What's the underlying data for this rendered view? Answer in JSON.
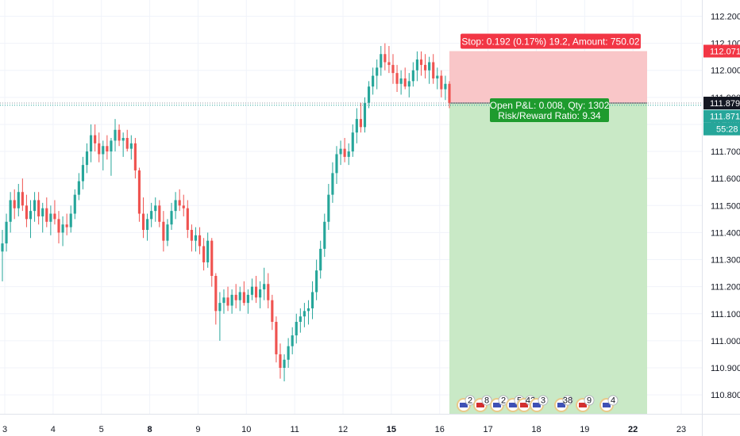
{
  "chart_data": {
    "type": "candlestick",
    "x_ticks": [
      "3",
      "4",
      "5",
      "8",
      "9",
      "10",
      "11",
      "12",
      "15",
      "16",
      "17",
      "18",
      "19",
      "22",
      "23"
    ],
    "x_ticks_bold": [
      "8",
      "15",
      "22"
    ],
    "y_ticks": [
      "110.800",
      "110.900",
      "111.000",
      "111.100",
      "111.200",
      "111.300",
      "111.400",
      "111.500",
      "111.600",
      "111.700",
      "111.800",
      "111.900",
      "112.000",
      "112.100",
      "112.200"
    ],
    "ylim": [
      110.73,
      112.26
    ],
    "grid": true,
    "candles": [
      {
        "o": 111.33,
        "h": 111.41,
        "l": 111.22,
        "c": 111.36
      },
      {
        "o": 111.36,
        "h": 111.47,
        "l": 111.33,
        "c": 111.44
      },
      {
        "o": 111.44,
        "h": 111.55,
        "l": 111.4,
        "c": 111.52
      },
      {
        "o": 111.52,
        "h": 111.56,
        "l": 111.45,
        "c": 111.49
      },
      {
        "o": 111.49,
        "h": 111.58,
        "l": 111.46,
        "c": 111.55
      },
      {
        "o": 111.55,
        "h": 111.6,
        "l": 111.48,
        "c": 111.5
      },
      {
        "o": 111.5,
        "h": 111.54,
        "l": 111.42,
        "c": 111.45
      },
      {
        "o": 111.45,
        "h": 111.52,
        "l": 111.38,
        "c": 111.48
      },
      {
        "o": 111.48,
        "h": 111.55,
        "l": 111.44,
        "c": 111.52
      },
      {
        "o": 111.52,
        "h": 111.55,
        "l": 111.43,
        "c": 111.46
      },
      {
        "o": 111.46,
        "h": 111.51,
        "l": 111.4,
        "c": 111.49
      },
      {
        "o": 111.49,
        "h": 111.53,
        "l": 111.42,
        "c": 111.44
      },
      {
        "o": 111.44,
        "h": 111.5,
        "l": 111.39,
        "c": 111.47
      },
      {
        "o": 111.47,
        "h": 111.52,
        "l": 111.43,
        "c": 111.45
      },
      {
        "o": 111.45,
        "h": 111.48,
        "l": 111.36,
        "c": 111.4
      },
      {
        "o": 111.4,
        "h": 111.46,
        "l": 111.35,
        "c": 111.43
      },
      {
        "o": 111.43,
        "h": 111.47,
        "l": 111.39,
        "c": 111.42
      },
      {
        "o": 111.42,
        "h": 111.5,
        "l": 111.4,
        "c": 111.47
      },
      {
        "o": 111.47,
        "h": 111.56,
        "l": 111.45,
        "c": 111.54
      },
      {
        "o": 111.54,
        "h": 111.62,
        "l": 111.52,
        "c": 111.59
      },
      {
        "o": 111.59,
        "h": 111.68,
        "l": 111.56,
        "c": 111.65
      },
      {
        "o": 111.65,
        "h": 111.73,
        "l": 111.62,
        "c": 111.7
      },
      {
        "o": 111.7,
        "h": 111.8,
        "l": 111.66,
        "c": 111.76
      },
      {
        "o": 111.76,
        "h": 111.8,
        "l": 111.7,
        "c": 111.73
      },
      {
        "o": 111.73,
        "h": 111.77,
        "l": 111.66,
        "c": 111.69
      },
      {
        "o": 111.69,
        "h": 111.74,
        "l": 111.63,
        "c": 111.72
      },
      {
        "o": 111.72,
        "h": 111.76,
        "l": 111.67,
        "c": 111.7
      },
      {
        "o": 111.7,
        "h": 111.75,
        "l": 111.61,
        "c": 111.74
      },
      {
        "o": 111.74,
        "h": 111.82,
        "l": 111.7,
        "c": 111.78
      },
      {
        "o": 111.78,
        "h": 111.8,
        "l": 111.72,
        "c": 111.74
      },
      {
        "o": 111.74,
        "h": 111.77,
        "l": 111.68,
        "c": 111.75
      },
      {
        "o": 111.75,
        "h": 111.78,
        "l": 111.7,
        "c": 111.71
      },
      {
        "o": 111.71,
        "h": 111.76,
        "l": 111.67,
        "c": 111.73
      },
      {
        "o": 111.73,
        "h": 111.75,
        "l": 111.6,
        "c": 111.63
      },
      {
        "o": 111.63,
        "h": 111.64,
        "l": 111.44,
        "c": 111.47
      },
      {
        "o": 111.47,
        "h": 111.53,
        "l": 111.38,
        "c": 111.41
      },
      {
        "o": 111.41,
        "h": 111.47,
        "l": 111.37,
        "c": 111.45
      },
      {
        "o": 111.45,
        "h": 111.51,
        "l": 111.42,
        "c": 111.48
      },
      {
        "o": 111.48,
        "h": 111.53,
        "l": 111.44,
        "c": 111.5
      },
      {
        "o": 111.5,
        "h": 111.52,
        "l": 111.42,
        "c": 111.44
      },
      {
        "o": 111.44,
        "h": 111.48,
        "l": 111.33,
        "c": 111.37
      },
      {
        "o": 111.37,
        "h": 111.45,
        "l": 111.35,
        "c": 111.43
      },
      {
        "o": 111.43,
        "h": 111.51,
        "l": 111.41,
        "c": 111.48
      },
      {
        "o": 111.48,
        "h": 111.55,
        "l": 111.45,
        "c": 111.52
      },
      {
        "o": 111.52,
        "h": 111.56,
        "l": 111.48,
        "c": 111.5
      },
      {
        "o": 111.5,
        "h": 111.54,
        "l": 111.46,
        "c": 111.49
      },
      {
        "o": 111.49,
        "h": 111.52,
        "l": 111.38,
        "c": 111.41
      },
      {
        "o": 111.41,
        "h": 111.43,
        "l": 111.33,
        "c": 111.37
      },
      {
        "o": 111.37,
        "h": 111.42,
        "l": 111.33,
        "c": 111.39
      },
      {
        "o": 111.39,
        "h": 111.42,
        "l": 111.32,
        "c": 111.35
      },
      {
        "o": 111.35,
        "h": 111.38,
        "l": 111.26,
        "c": 111.29
      },
      {
        "o": 111.29,
        "h": 111.4,
        "l": 111.27,
        "c": 111.37
      },
      {
        "o": 111.37,
        "h": 111.38,
        "l": 111.2,
        "c": 111.24
      },
      {
        "o": 111.24,
        "h": 111.25,
        "l": 111.06,
        "c": 111.11
      },
      {
        "o": 111.11,
        "h": 111.18,
        "l": 111.0,
        "c": 111.14
      },
      {
        "o": 111.14,
        "h": 111.19,
        "l": 111.1,
        "c": 111.16
      },
      {
        "o": 111.16,
        "h": 111.2,
        "l": 111.11,
        "c": 111.13
      },
      {
        "o": 111.13,
        "h": 111.19,
        "l": 111.1,
        "c": 111.17
      },
      {
        "o": 111.17,
        "h": 111.21,
        "l": 111.12,
        "c": 111.15
      },
      {
        "o": 111.15,
        "h": 111.2,
        "l": 111.11,
        "c": 111.18
      },
      {
        "o": 111.18,
        "h": 111.22,
        "l": 111.13,
        "c": 111.14
      },
      {
        "o": 111.14,
        "h": 111.19,
        "l": 111.1,
        "c": 111.17
      },
      {
        "o": 111.17,
        "h": 111.23,
        "l": 111.15,
        "c": 111.2
      },
      {
        "o": 111.2,
        "h": 111.24,
        "l": 111.14,
        "c": 111.16
      },
      {
        "o": 111.16,
        "h": 111.22,
        "l": 111.12,
        "c": 111.19
      },
      {
        "o": 111.19,
        "h": 111.27,
        "l": 111.15,
        "c": 111.21
      },
      {
        "o": 111.21,
        "h": 111.25,
        "l": 111.12,
        "c": 111.15
      },
      {
        "o": 111.15,
        "h": 111.17,
        "l": 111.04,
        "c": 111.07
      },
      {
        "o": 111.07,
        "h": 111.09,
        "l": 110.92,
        "c": 110.95
      },
      {
        "o": 110.95,
        "h": 110.99,
        "l": 110.86,
        "c": 110.9
      },
      {
        "o": 110.9,
        "h": 110.95,
        "l": 110.85,
        "c": 110.93
      },
      {
        "o": 110.93,
        "h": 111.01,
        "l": 110.9,
        "c": 110.98
      },
      {
        "o": 110.98,
        "h": 111.05,
        "l": 110.95,
        "c": 111.02
      },
      {
        "o": 111.02,
        "h": 111.1,
        "l": 110.99,
        "c": 111.07
      },
      {
        "o": 111.07,
        "h": 111.12,
        "l": 111.03,
        "c": 111.09
      },
      {
        "o": 111.09,
        "h": 111.14,
        "l": 111.05,
        "c": 111.11
      },
      {
        "o": 111.11,
        "h": 111.15,
        "l": 111.06,
        "c": 111.12
      },
      {
        "o": 111.12,
        "h": 111.22,
        "l": 111.08,
        "c": 111.18
      },
      {
        "o": 111.18,
        "h": 111.3,
        "l": 111.15,
        "c": 111.26
      },
      {
        "o": 111.26,
        "h": 111.37,
        "l": 111.23,
        "c": 111.34
      },
      {
        "o": 111.34,
        "h": 111.47,
        "l": 111.31,
        "c": 111.44
      },
      {
        "o": 111.44,
        "h": 111.58,
        "l": 111.41,
        "c": 111.54
      },
      {
        "o": 111.54,
        "h": 111.66,
        "l": 111.51,
        "c": 111.62
      },
      {
        "o": 111.62,
        "h": 111.72,
        "l": 111.58,
        "c": 111.69
      },
      {
        "o": 111.69,
        "h": 111.74,
        "l": 111.65,
        "c": 111.71
      },
      {
        "o": 111.71,
        "h": 111.75,
        "l": 111.66,
        "c": 111.68
      },
      {
        "o": 111.68,
        "h": 111.73,
        "l": 111.65,
        "c": 111.7
      },
      {
        "o": 111.7,
        "h": 111.8,
        "l": 111.68,
        "c": 111.77
      },
      {
        "o": 111.77,
        "h": 111.86,
        "l": 111.73,
        "c": 111.82
      },
      {
        "o": 111.82,
        "h": 111.88,
        "l": 111.77,
        "c": 111.79
      },
      {
        "o": 111.79,
        "h": 111.9,
        "l": 111.77,
        "c": 111.88
      },
      {
        "o": 111.88,
        "h": 111.96,
        "l": 111.86,
        "c": 111.94
      },
      {
        "o": 111.94,
        "h": 112.01,
        "l": 111.91,
        "c": 111.98
      },
      {
        "o": 111.98,
        "h": 112.04,
        "l": 111.93,
        "c": 112.01
      },
      {
        "o": 112.01,
        "h": 112.09,
        "l": 111.98,
        "c": 112.06
      },
      {
        "o": 112.06,
        "h": 112.1,
        "l": 112.0,
        "c": 112.03
      },
      {
        "o": 112.03,
        "h": 112.09,
        "l": 111.99,
        "c": 112.02
      },
      {
        "o": 112.02,
        "h": 112.06,
        "l": 111.95,
        "c": 111.99
      },
      {
        "o": 111.99,
        "h": 112.02,
        "l": 111.92,
        "c": 111.95
      },
      {
        "o": 111.95,
        "h": 112.0,
        "l": 111.91,
        "c": 111.97
      },
      {
        "o": 111.97,
        "h": 112.01,
        "l": 111.93,
        "c": 111.94
      },
      {
        "o": 111.94,
        "h": 111.99,
        "l": 111.9,
        "c": 111.96
      },
      {
        "o": 111.96,
        "h": 112.03,
        "l": 111.94,
        "c": 112.0
      },
      {
        "o": 112.0,
        "h": 112.07,
        "l": 111.96,
        "c": 112.04
      },
      {
        "o": 112.04,
        "h": 112.07,
        "l": 111.98,
        "c": 112.02
      },
      {
        "o": 112.02,
        "h": 112.06,
        "l": 111.97,
        "c": 112.0
      },
      {
        "o": 112.0,
        "h": 112.05,
        "l": 111.95,
        "c": 112.03
      },
      {
        "o": 112.03,
        "h": 112.06,
        "l": 111.95,
        "c": 111.97
      },
      {
        "o": 111.97,
        "h": 112.01,
        "l": 111.93,
        "c": 111.98
      },
      {
        "o": 111.98,
        "h": 112.0,
        "l": 111.9,
        "c": 111.93
      },
      {
        "o": 111.93,
        "h": 111.98,
        "l": 111.89,
        "c": 111.95
      },
      {
        "o": 111.95,
        "h": 111.96,
        "l": 111.86,
        "c": 111.88
      }
    ],
    "position": {
      "entry": 111.879,
      "stop": 112.071,
      "target": 110.73,
      "stop_label": "Stop: 0.192 (0.17%) 19.2, Amount: 750.02",
      "pnl_line1": "Open P&L: 0.008, Qty: 1302",
      "pnl_line2": "Risk/Reward Ratio: 9.34"
    },
    "price_tags": [
      {
        "value": 112.071,
        "label": "112.071",
        "color": "#f23645"
      },
      {
        "value": 111.879,
        "label": "111.879",
        "color": "#131722"
      },
      {
        "value": 111.871,
        "label": "111.871",
        "color": "#26a69a"
      }
    ],
    "countdown": "55:28",
    "event_badges": [
      "2",
      "8",
      "2",
      "5",
      "42",
      "3",
      "38",
      "9",
      "4"
    ]
  },
  "colors": {
    "up": "#26a69a",
    "down": "#ef5350",
    "grid": "#f0f3fa",
    "stop_zone": "#f9c6c8",
    "profit_zone": "#c9e9c6",
    "stop_box": "#f23645",
    "pnl_box": "#1e9b2e",
    "axis_text": "#131722"
  }
}
